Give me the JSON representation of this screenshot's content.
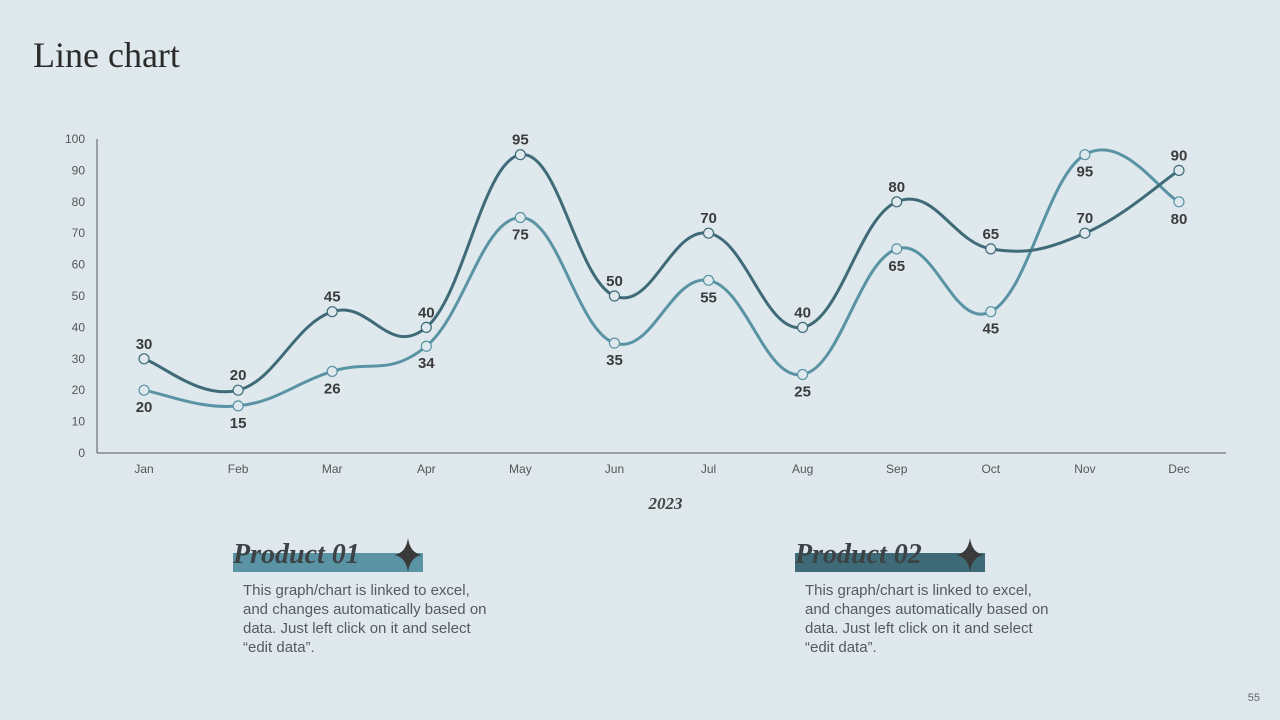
{
  "slide": {
    "title": "Line chart",
    "page_number": "55"
  },
  "colors": {
    "background": "#dfe9ed",
    "series_dark": "#3f6b78",
    "series_light": "#5a93a3",
    "marker_fill": "#dfe9ed",
    "axis": "#555555"
  },
  "chart_data": {
    "type": "line",
    "title": "",
    "xlabel": "2023",
    "ylabel": "",
    "ylim": [
      0,
      100
    ],
    "yticks": [
      0,
      10,
      20,
      30,
      40,
      50,
      60,
      70,
      80,
      90,
      100
    ],
    "grid": false,
    "legend": "none",
    "categories": [
      "Jan",
      "Feb",
      "Mar",
      "Apr",
      "May",
      "Jun",
      "Jul",
      "Aug",
      "Sep",
      "Oct",
      "Nov",
      "Dec"
    ],
    "series": [
      {
        "name": "Product 02",
        "color": "#3f6b78",
        "values": [
          30,
          20,
          45,
          40,
          95,
          50,
          70,
          40,
          80,
          65,
          70,
          90
        ],
        "label_position": [
          "above",
          "above",
          "above",
          "above",
          "above",
          "above",
          "above",
          "above",
          "above",
          "above",
          "above",
          "above"
        ]
      },
      {
        "name": "Product 01",
        "color": "#5a93a3",
        "values": [
          20,
          15,
          26,
          34,
          75,
          35,
          55,
          25,
          65,
          45,
          95,
          80
        ],
        "label_position": [
          "below",
          "below",
          "below",
          "below",
          "below",
          "below",
          "below",
          "below",
          "below",
          "below",
          "below",
          "below"
        ]
      }
    ]
  },
  "products": [
    {
      "title": "Product 01",
      "icon": "four-point-star-icon",
      "description": "This graph/chart is linked to excel, and changes automatically based on data. Just left click on it and select “edit data”."
    },
    {
      "title": "Product 02",
      "icon": "four-point-star-icon",
      "description": "This graph/chart is linked to excel, and changes automatically based on data. Just left click on it and select “edit data”."
    }
  ]
}
